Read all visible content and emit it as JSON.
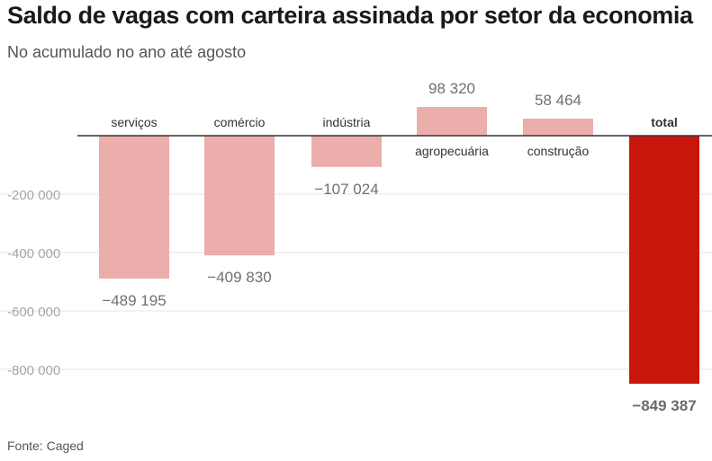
{
  "title": "Saldo de vagas com carteira assinada por setor da economia",
  "subtitle": "No acumulado no ano até agosto",
  "source": "Fonte: Caged",
  "colors": {
    "sector_bar": "#ebaeab",
    "total_bar": "#c8160c",
    "axis": "#333333",
    "grid": "#e6e6e6",
    "tick_label": "#a6a6a6",
    "value_label": "#707070",
    "total_value_label": "#6b6b6b",
    "category_label": "#333333"
  },
  "chart_data": {
    "type": "bar",
    "categories": [
      "serviços",
      "comércio",
      "indústria",
      "agropecuária",
      "construção",
      "total"
    ],
    "values": [
      -489195,
      -409830,
      -107024,
      98320,
      58464,
      -849387
    ],
    "value_labels": [
      "−489 195",
      "−409 830",
      "−107 024",
      "98 320",
      "58 464",
      "−849 387"
    ],
    "emphasized": [
      false,
      false,
      false,
      false,
      false,
      true
    ],
    "ylim": [
      -900000,
      130000
    ],
    "yticks": [
      -200000,
      -400000,
      -600000,
      -800000
    ],
    "ytick_labels": [
      "-200 000",
      "-400 000",
      "-600 000",
      "-800 000"
    ],
    "grid": true,
    "xlabel": "",
    "ylabel": ""
  }
}
